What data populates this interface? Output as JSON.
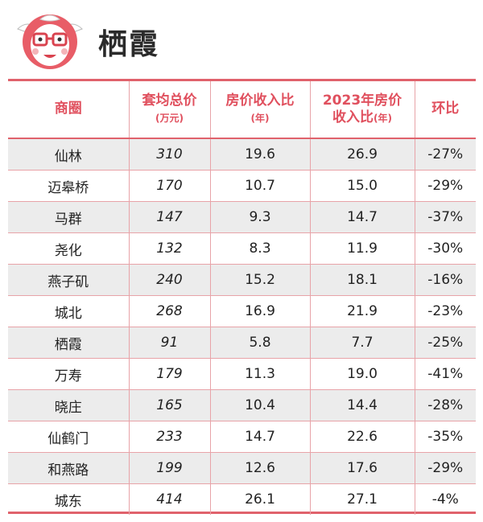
{
  "header": {
    "title": "栖霞"
  },
  "table": {
    "columns": [
      {
        "label": "商圈",
        "sub": ""
      },
      {
        "label": "套均总价",
        "sub": "(万元)"
      },
      {
        "label": "房价收入比",
        "sub": "(年)"
      },
      {
        "label": "2023年房价",
        "label2": "收入比",
        "sub": "(年)"
      },
      {
        "label": "环比",
        "sub": ""
      }
    ],
    "rows": [
      {
        "area": "仙林",
        "price": "310",
        "ratio": "19.6",
        "ratio2023": "26.9",
        "change": "-27%"
      },
      {
        "area": "迈皋桥",
        "price": "170",
        "ratio": "10.7",
        "ratio2023": "15.0",
        "change": "-29%"
      },
      {
        "area": "马群",
        "price": "147",
        "ratio": "9.3",
        "ratio2023": "14.7",
        "change": "-37%"
      },
      {
        "area": "尧化",
        "price": "132",
        "ratio": "8.3",
        "ratio2023": "11.9",
        "change": "-30%"
      },
      {
        "area": "燕子矶",
        "price": "240",
        "ratio": "15.2",
        "ratio2023": "18.1",
        "change": "-16%"
      },
      {
        "area": "城北",
        "price": "268",
        "ratio": "16.9",
        "ratio2023": "21.9",
        "change": "-23%"
      },
      {
        "area": "栖霞",
        "price": "91",
        "ratio": "5.8",
        "ratio2023": "7.7",
        "change": "-25%"
      },
      {
        "area": "万寿",
        "price": "179",
        "ratio": "11.3",
        "ratio2023": "19.0",
        "change": "-41%"
      },
      {
        "area": "晓庄",
        "price": "165",
        "ratio": "10.4",
        "ratio2023": "14.4",
        "change": "-28%"
      },
      {
        "area": "仙鹤门",
        "price": "233",
        "ratio": "14.7",
        "ratio2023": "22.6",
        "change": "-35%"
      },
      {
        "area": "和燕路",
        "price": "199",
        "ratio": "12.6",
        "ratio2023": "17.6",
        "change": "-29%"
      },
      {
        "area": "城东",
        "price": "414",
        "ratio": "26.1",
        "ratio2023": "27.1",
        "change": "-4%"
      }
    ]
  }
}
